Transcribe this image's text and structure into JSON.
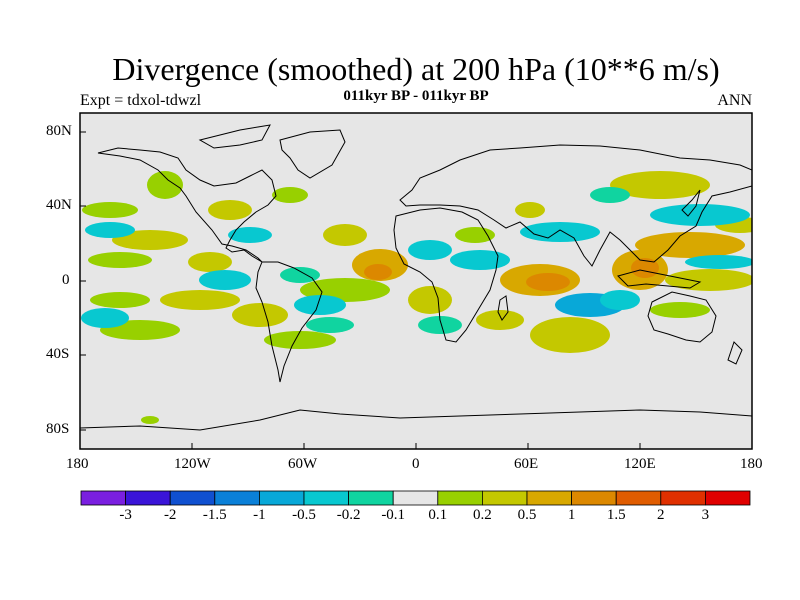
{
  "header": {
    "title": "Divergence (smoothed) at 200 hPa (10**6 m/s)",
    "subtitle": "011kyr BP - 011kyr BP",
    "left_label": "Expt = tdxol-tdwzl",
    "right_label": "ANN"
  },
  "map": {
    "projection": "cylindrical-equidistant",
    "lon_range": [
      -180,
      180
    ],
    "lat_range": [
      -90,
      90
    ],
    "x_ticks": [
      "180",
      "120W",
      "60W",
      "0",
      "60E",
      "120E",
      "180"
    ],
    "y_ticks": [
      "80N",
      "40N",
      "0",
      "40S",
      "80S"
    ],
    "background_color": "#e6e6e6",
    "coastline_color": "#000000"
  },
  "colorbar": {
    "labels": [
      "-3",
      "-2",
      "-1.5",
      "-1",
      "-0.5",
      "-0.2",
      "-0.1",
      "0.1",
      "0.2",
      "0.5",
      "1",
      "1.5",
      "2",
      "3"
    ],
    "colors": [
      "#7a1fe0",
      "#3a14d8",
      "#1050d0",
      "#0a80d8",
      "#08a8d8",
      "#08c8d0",
      "#10d4a0",
      "#e6e6e6",
      "#98d000",
      "#c4c800",
      "#d8a800",
      "#dc8800",
      "#e05c00",
      "#e03000",
      "#e00000"
    ]
  }
}
